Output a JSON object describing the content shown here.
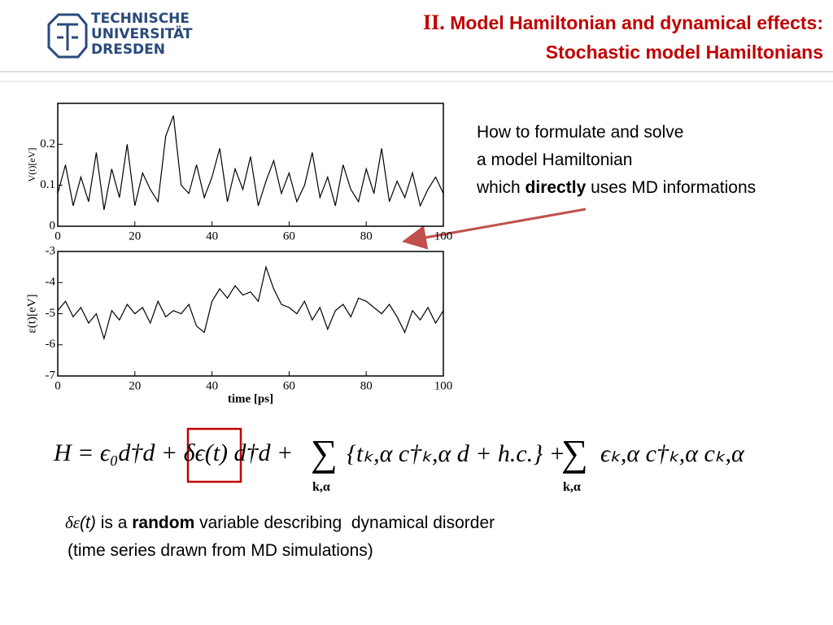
{
  "header": {
    "logo": [
      "TECHNISCHE",
      "UNIVERSITÄT",
      "DRESDEN"
    ],
    "title_prefix": "II.",
    "title_lines": [
      "Model Hamiltonian and dynamical effects:",
      "Stochastic model Hamiltonians"
    ]
  },
  "charts": [
    {
      "type": "line",
      "ylabel": "V(t)[eV]",
      "x": [
        0,
        2,
        4,
        6,
        8,
        10,
        12,
        14,
        16,
        18,
        20,
        22,
        24,
        26,
        28,
        30,
        32,
        34,
        36,
        38,
        40,
        42,
        44,
        46,
        48,
        50,
        52,
        54,
        56,
        58,
        60,
        62,
        64,
        66,
        68,
        70,
        72,
        74,
        76,
        78,
        80,
        82,
        84,
        86,
        88,
        90,
        92,
        94,
        96,
        98,
        100
      ],
      "series": [
        {
          "color": "#000000",
          "values": [
            0.08,
            0.15,
            0.05,
            0.12,
            0.06,
            0.18,
            0.04,
            0.14,
            0.07,
            0.2,
            0.05,
            0.13,
            0.09,
            0.06,
            0.22,
            0.27,
            0.1,
            0.08,
            0.15,
            0.07,
            0.12,
            0.19,
            0.06,
            0.14,
            0.09,
            0.17,
            0.05,
            0.11,
            0.16,
            0.08,
            0.13,
            0.06,
            0.1,
            0.18,
            0.07,
            0.12,
            0.05,
            0.15,
            0.09,
            0.06,
            0.14,
            0.08,
            0.19,
            0.06,
            0.11,
            0.07,
            0.13,
            0.05,
            0.09,
            0.12,
            0.08
          ]
        }
      ],
      "xlim": [
        0,
        100
      ],
      "xticks": [
        0,
        20,
        40,
        60,
        80,
        100
      ],
      "ylim": [
        0,
        0.3
      ],
      "yticks": [
        0,
        0.1,
        0.2
      ]
    },
    {
      "type": "line",
      "xlabel": "time [ps]",
      "ylabel": "ε(t)[eV]",
      "x": [
        0,
        2,
        4,
        6,
        8,
        10,
        12,
        14,
        16,
        18,
        20,
        22,
        24,
        26,
        28,
        30,
        32,
        34,
        36,
        38,
        40,
        42,
        44,
        46,
        48,
        50,
        52,
        54,
        56,
        58,
        60,
        62,
        64,
        66,
        68,
        70,
        72,
        74,
        76,
        78,
        80,
        82,
        84,
        86,
        88,
        90,
        92,
        94,
        96,
        98,
        100
      ],
      "series": [
        {
          "color": "#000000",
          "values": [
            -4.9,
            -4.6,
            -5.1,
            -4.8,
            -5.3,
            -5.0,
            -5.8,
            -4.9,
            -5.2,
            -4.7,
            -5.0,
            -4.8,
            -5.3,
            -4.6,
            -5.1,
            -4.9,
            -5.0,
            -4.7,
            -5.4,
            -5.6,
            -4.6,
            -4.2,
            -4.5,
            -4.1,
            -4.4,
            -4.3,
            -4.6,
            -3.5,
            -4.2,
            -4.7,
            -4.8,
            -5.0,
            -4.6,
            -5.2,
            -4.8,
            -5.5,
            -4.9,
            -4.7,
            -5.1,
            -4.5,
            -4.6,
            -4.8,
            -5.0,
            -4.7,
            -5.1,
            -5.6,
            -4.9,
            -5.2,
            -4.8,
            -5.3,
            -4.9
          ]
        }
      ],
      "xlim": [
        0,
        100
      ],
      "xticks": [
        0,
        20,
        40,
        60,
        80,
        100
      ],
      "ylim": [
        -7,
        -3
      ],
      "yticks": [
        -7,
        -6,
        -5,
        -4,
        -3
      ]
    }
  ],
  "question": {
    "line1": "How to formulate and solve",
    "line2": "a model Hamiltonian",
    "line3_pre": "which",
    "line3_bold": "directly",
    "line3_post": "uses MD informations"
  },
  "equation": {
    "part1": "H = ϵ₀d†d +",
    "boxed": "δϵ(t)",
    "part2": "d†d +",
    "sum": "∑",
    "sum_sub": "k,α",
    "part3": "{tₖ,α c†ₖ,α d + h.c.} +",
    "part4": "ϵₖ,α c†ₖ,α cₖ,α"
  },
  "caption": {
    "symbol": "δε",
    "arg": "(t)",
    "pre": "is a",
    "bold": "random",
    "post": "variable describing  dynamical disorder",
    "line2": "(time series drawn from MD simulations)"
  }
}
